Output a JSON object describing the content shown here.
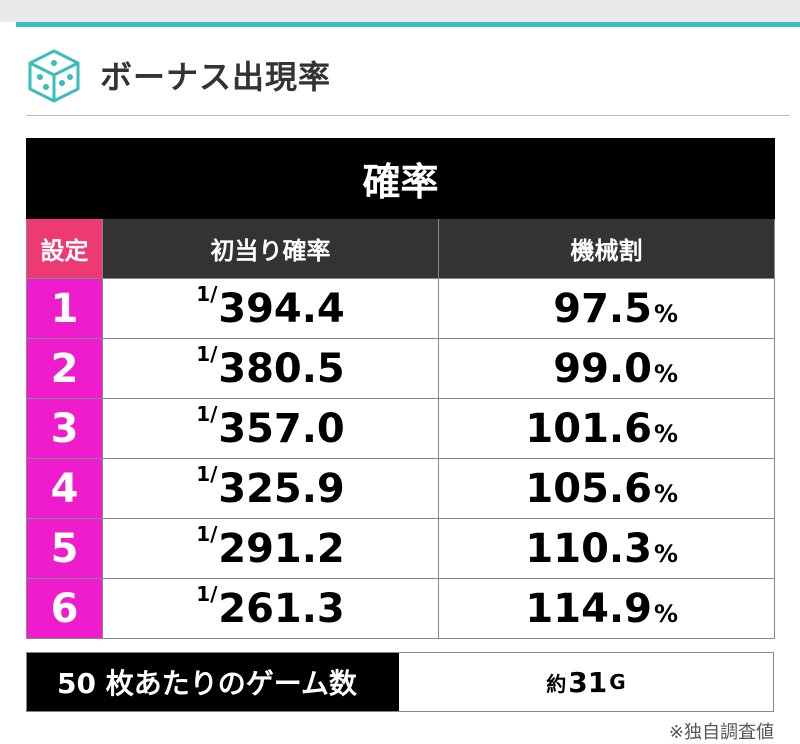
{
  "section": {
    "title": "ボーナス出現率",
    "icon": "dice-icon"
  },
  "table": {
    "title": "確率",
    "headers": {
      "setting": "設定",
      "probability": "初当り確率",
      "payout": "機械割"
    },
    "rows": [
      {
        "setting": "1",
        "prob_prefix": "1/",
        "probability": "394.4",
        "payout": "97.5",
        "unit": "%"
      },
      {
        "setting": "2",
        "prob_prefix": "1/",
        "probability": "380.5",
        "payout": "99.0",
        "unit": "%"
      },
      {
        "setting": "3",
        "prob_prefix": "1/",
        "probability": "357.0",
        "payout": "101.6",
        "unit": "%"
      },
      {
        "setting": "4",
        "prob_prefix": "1/",
        "probability": "325.9",
        "payout": "105.6",
        "unit": "%"
      },
      {
        "setting": "5",
        "prob_prefix": "1/",
        "probability": "291.2",
        "payout": "110.3",
        "unit": "%"
      },
      {
        "setting": "6",
        "prob_prefix": "1/",
        "probability": "261.3",
        "payout": "114.9",
        "unit": "%"
      }
    ]
  },
  "games_per_50": {
    "label": "50 枚あたりのゲーム数",
    "prefix": "約",
    "value": "31",
    "unit": "G"
  },
  "note": "※独自調査値",
  "colors": {
    "accent": "#3bbcbd",
    "setting_header": "#ee3a73",
    "setting_cell": "#ee1ccc",
    "header_dark": "#333333"
  }
}
